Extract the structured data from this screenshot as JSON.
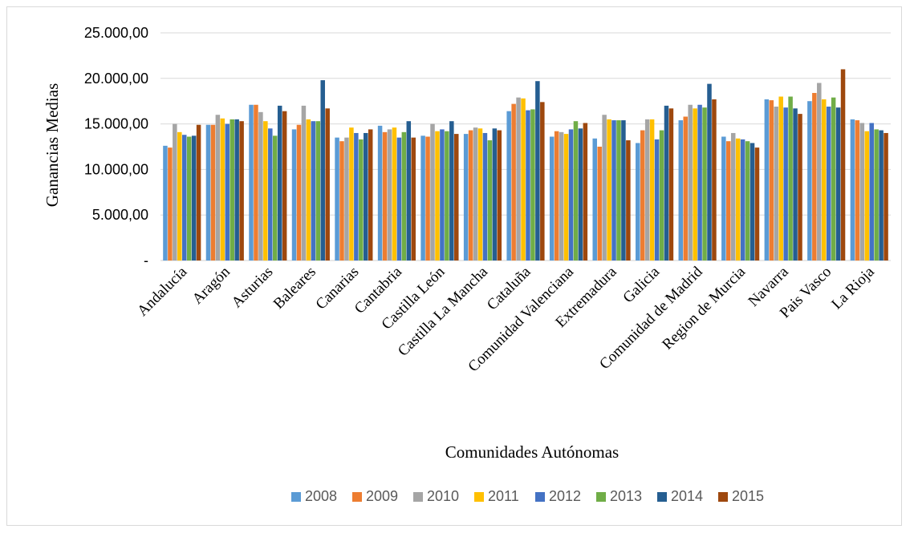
{
  "chart_data": {
    "type": "bar",
    "title": "",
    "xlabel": "Comunidades Autónomas",
    "ylabel": "Ganancias Medias",
    "ylim": [
      0,
      25000
    ],
    "yticks": [
      0,
      5000,
      10000,
      15000,
      20000,
      25000
    ],
    "ytick_labels": [
      "-",
      "5.000,00",
      "10.000,00",
      "15.000,00",
      "20.000,00",
      "25.000,00"
    ],
    "grid": true,
    "legend_position": "bottom",
    "categories": [
      "Andalucía",
      "Aragón",
      "Asturias",
      "Baleares",
      "Canarias",
      "Cantabria",
      "Castilla León",
      "Castilla La Mancha",
      "Cataluña",
      "Comunidad Valenciana",
      "Extremadura",
      "Galicia",
      "Comunidad de Madrid",
      "Region de Murcia",
      "Navarra",
      "Pais Vasco",
      "La Rioja"
    ],
    "series": [
      {
        "name": "2008",
        "color": "#5b9bd5",
        "values": [
          12600,
          14900,
          17100,
          14400,
          13500,
          14800,
          13700,
          13900,
          16400,
          13600,
          13400,
          12900,
          15400,
          13600,
          17700,
          17500,
          15500
        ]
      },
      {
        "name": "2009",
        "color": "#ed7d31",
        "values": [
          12400,
          14900,
          17100,
          14900,
          13100,
          14100,
          13600,
          14300,
          17200,
          14200,
          12500,
          14300,
          15800,
          13100,
          17600,
          18400,
          15400
        ]
      },
      {
        "name": "2010",
        "color": "#a5a5a5",
        "values": [
          15000,
          16000,
          16300,
          17000,
          13500,
          14400,
          15000,
          14600,
          17900,
          14100,
          16000,
          15500,
          17100,
          14000,
          16900,
          19500,
          15100
        ]
      },
      {
        "name": "2011",
        "color": "#ffc000",
        "values": [
          14100,
          15600,
          15300,
          15500,
          14600,
          14600,
          14200,
          14500,
          17800,
          13900,
          15500,
          15500,
          16700,
          13400,
          18000,
          17700,
          14200
        ]
      },
      {
        "name": "2012",
        "color": "#4472c4",
        "values": [
          13800,
          15000,
          14500,
          15300,
          14000,
          13500,
          14400,
          14000,
          16500,
          14400,
          15400,
          13300,
          17100,
          13300,
          16800,
          16900,
          15100
        ]
      },
      {
        "name": "2013",
        "color": "#70ad47",
        "values": [
          13600,
          15500,
          13700,
          15300,
          13300,
          14100,
          14200,
          13200,
          16600,
          15300,
          15400,
          14300,
          16800,
          13100,
          18000,
          17900,
          14400
        ]
      },
      {
        "name": "2014",
        "color": "#255e91",
        "values": [
          13700,
          15500,
          17000,
          19800,
          14000,
          15300,
          15300,
          14500,
          19700,
          14500,
          15400,
          17000,
          19400,
          12900,
          16700,
          16800,
          14300
        ]
      },
      {
        "name": "2015",
        "color": "#9e480e",
        "values": [
          14900,
          15300,
          16400,
          16700,
          14400,
          13500,
          13900,
          14300,
          17400,
          15100,
          13200,
          16700,
          17700,
          12400,
          16100,
          21000,
          14000
        ]
      }
    ]
  }
}
